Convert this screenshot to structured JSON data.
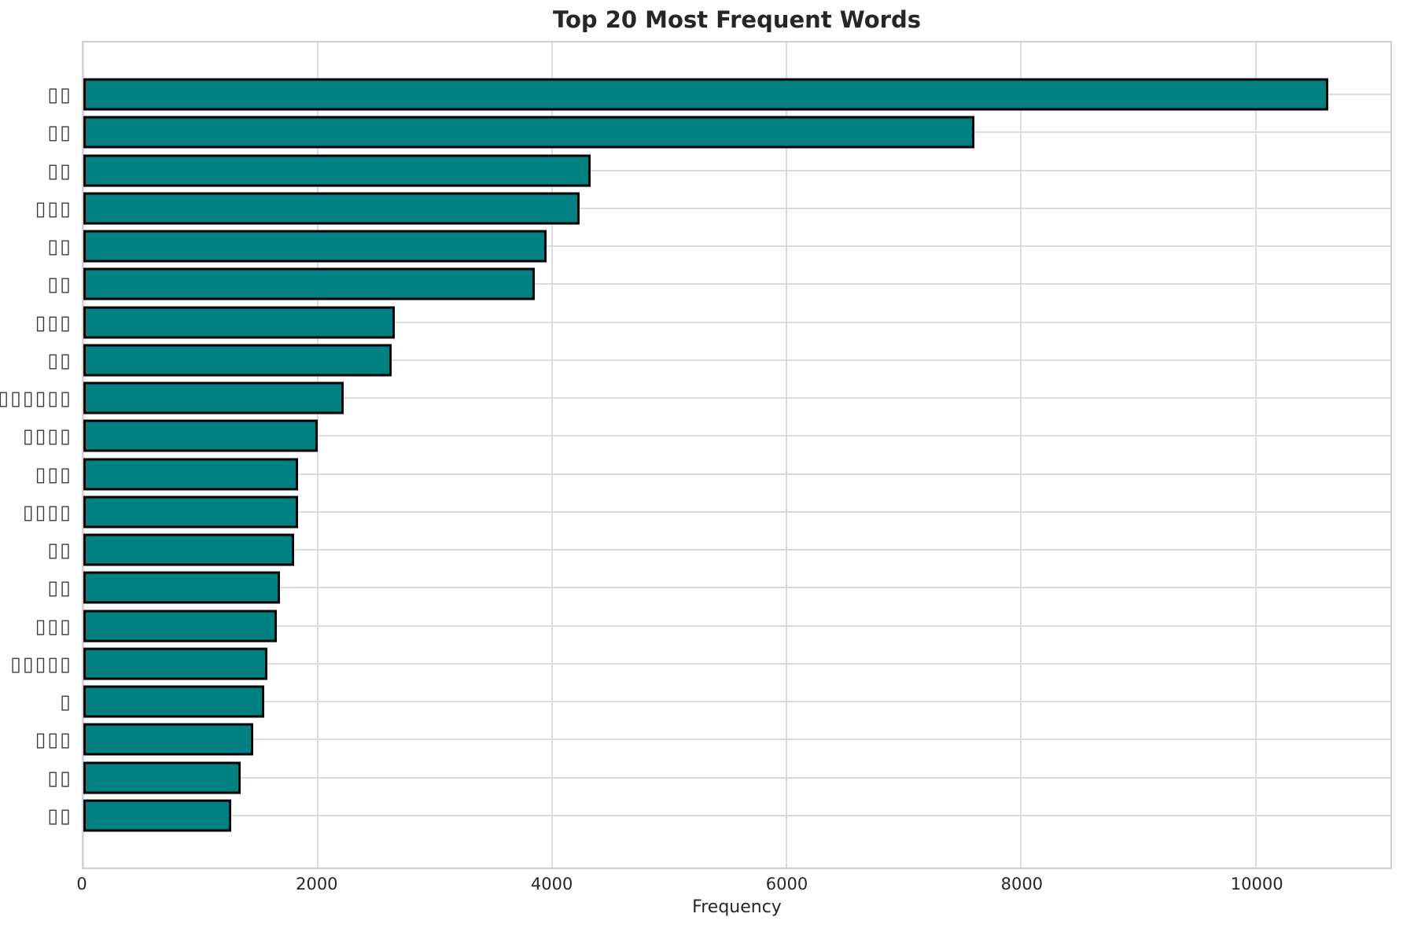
{
  "figure": {
    "title": "Top 20 Most Frequent Words",
    "xlabel": "Frequency"
  },
  "chart_data": {
    "type": "bar",
    "orientation": "horizontal",
    "title": "Top 20 Most Frequent Words",
    "xlabel": "Frequency",
    "ylabel": "",
    "categories": [
      "▯▯",
      "▯▯",
      "▯▯",
      "▯▯▯",
      "▯▯",
      "▯▯",
      "▯▯▯",
      "▯▯",
      "▯▯▯▯▯▯",
      "▯▯▯▯",
      "▯▯▯",
      "▯▯▯▯",
      "▯▯",
      "▯▯",
      "▯▯▯",
      "▯▯▯▯▯",
      "▯",
      "▯▯▯",
      "▯▯",
      "▯▯"
    ],
    "categories_note": "Y-axis word labels render as missing-glyph (tofu) boxes in the screenshot; box counts per label preserved",
    "values": [
      10620,
      7600,
      4330,
      4230,
      3950,
      3850,
      2660,
      2630,
      2220,
      2000,
      1830,
      1830,
      1800,
      1680,
      1650,
      1570,
      1540,
      1450,
      1340,
      1260
    ],
    "x_ticks": [
      0,
      2000,
      4000,
      6000,
      8000,
      10000
    ],
    "xlim": [
      0,
      11150
    ],
    "grid": true,
    "legend": false,
    "bar_color": "#008080",
    "bar_edge_color": "#000000",
    "grid_color": "#dcdcdc",
    "title_color": "#262626",
    "tick_label_color": "#262626"
  }
}
